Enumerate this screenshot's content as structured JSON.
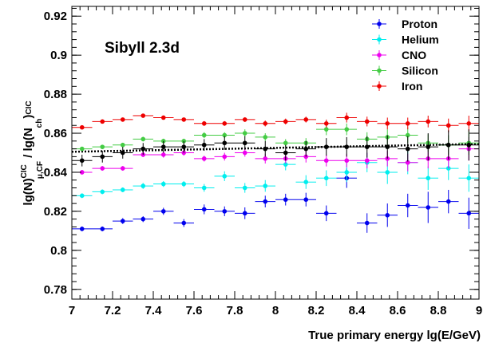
{
  "chart_data": {
    "type": "scatter",
    "title": "",
    "annotation": "Sibyll 2.3d",
    "xlabel": "True primary energy lg(E/GeV)",
    "ylabel": "lg(N_μ,CF^CIC) / lg(N_ch^CIC)",
    "xlim": [
      7,
      9
    ],
    "ylim": [
      0.775,
      0.925
    ],
    "x_ticks": [
      "7",
      "7.2",
      "7.4",
      "7.6",
      "7.8",
      "8",
      "8.2",
      "8.4",
      "8.6",
      "8.8",
      "9"
    ],
    "y_ticks": [
      "0.78",
      "0.8",
      "0.82",
      "0.84",
      "0.86",
      "0.88",
      "0.9",
      "0.92"
    ],
    "grid": false,
    "legend_position": "top-right",
    "x": [
      7.05,
      7.15,
      7.25,
      7.35,
      7.45,
      7.55,
      7.65,
      7.75,
      7.85,
      7.95,
      8.05,
      8.15,
      8.25,
      8.35,
      8.45,
      8.55,
      8.65,
      8.75,
      8.85,
      8.95
    ],
    "series": [
      {
        "name": "Proton",
        "color": "#0000ee",
        "values": [
          0.811,
          0.811,
          0.815,
          0.816,
          0.82,
          0.814,
          0.821,
          0.82,
          0.819,
          0.825,
          0.826,
          0.826,
          0.819,
          0.837,
          0.814,
          0.818,
          0.823,
          0.822,
          0.825,
          0.819
        ],
        "errors": [
          0.0012,
          0.0012,
          0.0015,
          0.0015,
          0.0018,
          0.002,
          0.0025,
          0.0025,
          0.003,
          0.003,
          0.003,
          0.0035,
          0.004,
          0.005,
          0.005,
          0.006,
          0.006,
          0.008,
          0.006,
          0.008
        ]
      },
      {
        "name": "Helium",
        "color": "#00eeee",
        "values": [
          0.828,
          0.83,
          0.831,
          0.833,
          0.834,
          0.834,
          0.832,
          0.838,
          0.832,
          0.833,
          0.844,
          0.835,
          0.837,
          0.84,
          0.845,
          0.84,
          0.845,
          0.837,
          0.842,
          0.837
        ],
        "errors": [
          0.0012,
          0.0012,
          0.0012,
          0.0015,
          0.0015,
          0.0015,
          0.002,
          0.0025,
          0.0025,
          0.003,
          0.003,
          0.0035,
          0.004,
          0.005,
          0.005,
          0.006,
          0.006,
          0.006,
          0.006,
          0.007
        ]
      },
      {
        "name": "CNO",
        "color": "#ee00ee",
        "values": [
          0.84,
          0.842,
          0.842,
          0.849,
          0.849,
          0.85,
          0.847,
          0.848,
          0.85,
          0.847,
          0.847,
          0.848,
          0.846,
          0.846,
          0.846,
          0.847,
          0.845,
          0.847,
          0.847,
          0.852
        ],
        "errors": [
          0.0012,
          0.0012,
          0.0012,
          0.0012,
          0.0015,
          0.0015,
          0.0015,
          0.002,
          0.002,
          0.0025,
          0.0025,
          0.003,
          0.003,
          0.0035,
          0.004,
          0.004,
          0.0045,
          0.005,
          0.005,
          0.006
        ]
      },
      {
        "name": "Silicon",
        "color": "#44cc44",
        "values": [
          0.852,
          0.853,
          0.854,
          0.857,
          0.856,
          0.856,
          0.859,
          0.859,
          0.86,
          0.858,
          0.855,
          0.855,
          0.862,
          0.862,
          0.857,
          0.858,
          0.859,
          0.855,
          0.854,
          0.855
        ],
        "errors": [
          0.001,
          0.001,
          0.001,
          0.0012,
          0.0012,
          0.0012,
          0.0015,
          0.0015,
          0.002,
          0.002,
          0.002,
          0.0025,
          0.003,
          0.003,
          0.0035,
          0.004,
          0.004,
          0.0045,
          0.005,
          0.006
        ]
      },
      {
        "name": "Iron",
        "color": "#ee0000",
        "values": [
          0.863,
          0.866,
          0.867,
          0.869,
          0.868,
          0.867,
          0.865,
          0.865,
          0.867,
          0.865,
          0.866,
          0.867,
          0.865,
          0.868,
          0.866,
          0.865,
          0.865,
          0.866,
          0.864,
          0.865
        ],
        "errors": [
          0.0008,
          0.0008,
          0.0008,
          0.0008,
          0.001,
          0.001,
          0.0012,
          0.0012,
          0.0012,
          0.0015,
          0.0015,
          0.0015,
          0.002,
          0.0025,
          0.0025,
          0.003,
          0.003,
          0.003,
          0.0035,
          0.004
        ]
      },
      {
        "color": "#000000",
        "values": [
          0.846,
          0.848,
          0.85,
          0.852,
          0.853,
          0.853,
          0.854,
          0.855,
          0.855,
          0.852,
          0.85,
          0.852,
          0.853,
          0.853,
          0.853,
          0.853,
          0.852,
          0.853,
          0.854,
          0.854
        ],
        "errors": [
          0.003,
          0.003,
          0.003,
          0.003,
          0.003,
          0.003,
          0.003,
          0.0035,
          0.0035,
          0.004,
          0.004,
          0.004,
          0.0045,
          0.005,
          0.0055,
          0.006,
          0.0065,
          0.007,
          0.0075,
          0.008
        ]
      }
    ],
    "fit_line": {
      "style": "dotted",
      "color": "#000000",
      "x": [
        7,
        9
      ],
      "y": [
        0.8505,
        0.8545
      ]
    }
  }
}
